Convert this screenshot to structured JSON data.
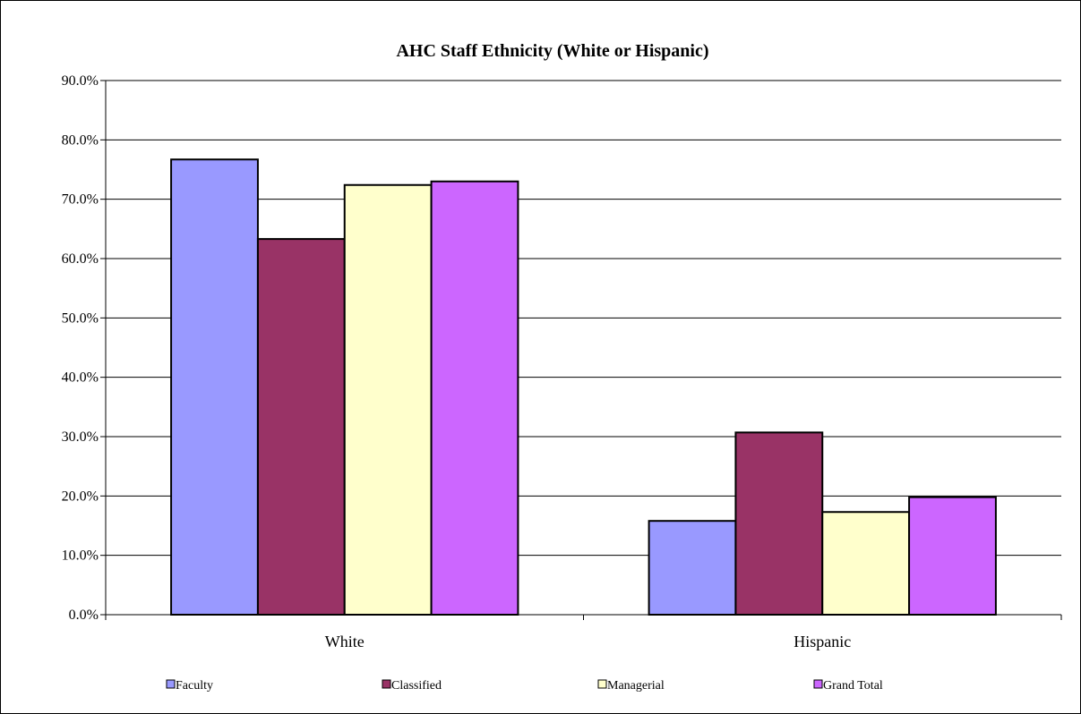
{
  "chart_data": {
    "type": "bar",
    "title": "AHC Staff Ethnicity (White or Hispanic)",
    "xlabel": "",
    "ylabel": "",
    "categories": [
      "White",
      "Hispanic"
    ],
    "series": [
      {
        "name": "Faculty",
        "values": [
          76.7,
          15.8
        ],
        "color": "#9999FF"
      },
      {
        "name": "Classified",
        "values": [
          63.3,
          30.7
        ],
        "color": "#993366"
      },
      {
        "name": "Managerial",
        "values": [
          72.4,
          17.3
        ],
        "color": "#FFFFCC"
      },
      {
        "name": "Grand Total",
        "values": [
          73.0,
          19.8
        ],
        "color": "#CC66FF"
      }
    ],
    "ylim": [
      0,
      90
    ],
    "ytick_step": 10,
    "ytick_format": "percent-1dp",
    "grid": true,
    "legend_position": "bottom"
  }
}
